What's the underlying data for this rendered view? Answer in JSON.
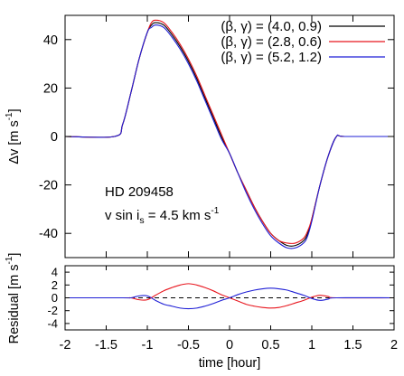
{
  "chart_data": [
    {
      "type": "line",
      "title": "",
      "xlabel": "",
      "ylabel_main": "Δv [m s",
      "ylabel_sup": "-1",
      "ylabel_end": "]",
      "xlim": [
        -2,
        2
      ],
      "ylim": [
        -50,
        50
      ],
      "xticks": [
        -2,
        -1.5,
        -1,
        -0.5,
        0,
        0.5,
        1,
        1.5,
        2
      ],
      "yticks": [
        -40,
        -20,
        0,
        20,
        40
      ],
      "ytick_labels": [
        "-40",
        "-20",
        "0",
        "20",
        "40"
      ],
      "grid": false,
      "legend_position": "top-right",
      "annotations": {
        "line1": "HD 209458",
        "line2_pre": "v sin i",
        "line2_sub": "s",
        "line2_mid": " = 4.5 km s",
        "line2_sup": "-1"
      },
      "x": [
        -2.0,
        -1.4,
        -1.3,
        -1.2,
        -1.1,
        -1.0,
        -0.95,
        -0.9,
        -0.8,
        -0.7,
        -0.6,
        -0.5,
        -0.4,
        -0.3,
        -0.2,
        -0.1,
        0.0,
        0.1,
        0.2,
        0.3,
        0.4,
        0.5,
        0.6,
        0.7,
        0.8,
        0.9,
        0.95,
        1.0,
        1.1,
        1.2,
        1.3,
        1.4,
        2.0
      ],
      "series": [
        {
          "name": "(β, γ) =  (4.0, 0.9)",
          "color": "#000000",
          "values": [
            0,
            0,
            5,
            18,
            32,
            43,
            46,
            47,
            46,
            42,
            37,
            31,
            24,
            16,
            8,
            0,
            -7,
            -15,
            -22,
            -29,
            -35,
            -40,
            -43,
            -45,
            -45,
            -43,
            -40,
            -34,
            -20,
            -8,
            0,
            0,
            0
          ]
        },
        {
          "name": "(β, γ) =  (2.8, 0.6)",
          "color": "#e8161e",
          "values": [
            0,
            0,
            5,
            18,
            32,
            43,
            47,
            48,
            47,
            43,
            38,
            32,
            25,
            17,
            9,
            1,
            -7,
            -15,
            -22,
            -29,
            -35,
            -40,
            -43,
            -44,
            -44,
            -42,
            -39,
            -34,
            -20,
            -8,
            0,
            0,
            0
          ]
        },
        {
          "name": "(β, γ) =  (5.2, 1.2)",
          "color": "#1f1fd6",
          "values": [
            0,
            0,
            5,
            18,
            32,
            43,
            45,
            46,
            45,
            41,
            36,
            30,
            23,
            15,
            7,
            -1,
            -7,
            -15,
            -23,
            -30,
            -36,
            -41,
            -44,
            -46,
            -46,
            -44,
            -41,
            -35,
            -20,
            -8,
            0,
            0,
            0
          ]
        }
      ]
    },
    {
      "type": "line",
      "title": "",
      "xlabel": "time [hour]",
      "ylabel_main": "Residual [m s",
      "ylabel_sup": "-1",
      "ylabel_end": "]",
      "xlim": [
        -2,
        2
      ],
      "ylim": [
        -5,
        5
      ],
      "xticks": [
        -2,
        -1.5,
        -1,
        -0.5,
        0,
        0.5,
        1,
        1.5,
        2
      ],
      "xtick_labels": [
        "-2",
        "-1.5",
        "-1",
        "-0.5",
        "0",
        "0.5",
        "1",
        "1.5",
        "2"
      ],
      "yticks": [
        -4,
        -2,
        0,
        2,
        4
      ],
      "ytick_labels": [
        "-4",
        "-2",
        "0",
        "2",
        "4"
      ],
      "grid": false,
      "x": [
        -2.0,
        -1.3,
        -1.2,
        -1.1,
        -1.0,
        -0.9,
        -0.8,
        -0.7,
        -0.6,
        -0.5,
        -0.4,
        -0.3,
        -0.2,
        -0.1,
        0.0,
        0.1,
        0.2,
        0.3,
        0.4,
        0.5,
        0.6,
        0.7,
        0.8,
        0.9,
        1.0,
        1.1,
        1.2,
        1.3,
        2.0
      ],
      "series": [
        {
          "name": "reference",
          "color": "#000000",
          "dashed": true,
          "values": [
            0,
            0,
            0,
            0,
            0,
            0,
            0,
            0,
            0,
            0,
            0,
            0,
            0,
            0,
            0,
            0,
            0,
            0,
            0,
            0,
            0,
            0,
            0,
            0,
            0,
            0,
            0,
            0,
            0
          ]
        },
        {
          "name": "red residual",
          "color": "#e8161e",
          "values": [
            0,
            0,
            0,
            -0.3,
            -0.3,
            0.4,
            1.1,
            1.6,
            2.0,
            2.2,
            2.0,
            1.6,
            1.1,
            0.5,
            0,
            -0.5,
            -1.0,
            -1.3,
            -1.5,
            -1.6,
            -1.5,
            -1.2,
            -0.8,
            -0.4,
            0.1,
            0.4,
            0.2,
            0,
            0
          ]
        },
        {
          "name": "blue residual",
          "color": "#1f1fd6",
          "values": [
            0,
            0,
            0,
            0.3,
            0.3,
            -0.4,
            -1.0,
            -1.3,
            -1.6,
            -1.7,
            -1.6,
            -1.3,
            -0.9,
            -0.4,
            0,
            0.5,
            0.9,
            1.2,
            1.4,
            1.5,
            1.4,
            1.2,
            0.8,
            0.4,
            -0.1,
            -0.4,
            -0.2,
            0,
            0
          ]
        }
      ]
    }
  ]
}
